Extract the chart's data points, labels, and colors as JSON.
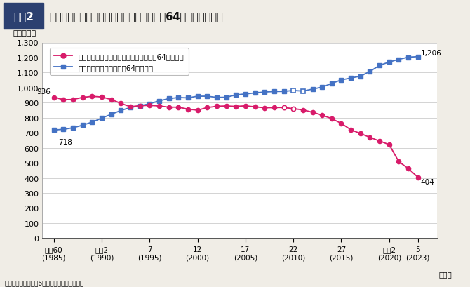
{
  "title_box": "図表2",
  "title_main": "共働き世帯と専業主婦世帯数の推移（妻が64歳以下の世帯）",
  "ylabel": "（万世帯）",
  "source": "出典＝内閣府「令和6年版男女共同参画白書」",
  "legend1": "男性雇用者と無業の妻から成る世帯（妻64歳以下）",
  "legend2": "雇用者の共働き世帯（妻64歳以下）",
  "bg_color": "#f0ede6",
  "plot_bg": "#ffffff",
  "years": [
    1985,
    1986,
    1987,
    1988,
    1989,
    1990,
    1991,
    1992,
    1993,
    1994,
    1995,
    1996,
    1997,
    1998,
    1999,
    2000,
    2001,
    2002,
    2003,
    2004,
    2005,
    2006,
    2007,
    2008,
    2009,
    2010,
    2011,
    2012,
    2013,
    2014,
    2015,
    2016,
    2017,
    2018,
    2019,
    2020,
    2021,
    2022,
    2023
  ],
  "pink_data": [
    936,
    920,
    921,
    935,
    942,
    938,
    921,
    895,
    873,
    880,
    882,
    878,
    870,
    870,
    857,
    850,
    867,
    876,
    878,
    875,
    879,
    872,
    866,
    867,
    868,
    860,
    852,
    836,
    817,
    794,
    762,
    720,
    695,
    669,
    645,
    621,
    508,
    462,
    404
  ],
  "pink_open_circles": [
    2009,
    2010
  ],
  "blue_data": [
    718,
    723,
    733,
    750,
    771,
    797,
    823,
    848,
    868,
    879,
    893,
    912,
    927,
    934,
    932,
    943,
    943,
    935,
    936,
    952,
    958,
    965,
    971,
    974,
    975,
    981,
    977,
    990,
    1003,
    1028,
    1051,
    1064,
    1076,
    1108,
    1148,
    1170,
    1188,
    1202,
    1206
  ],
  "blue_open_squares": [
    2010,
    2011
  ],
  "ylim": [
    0,
    1300
  ],
  "yticks": [
    0,
    100,
    200,
    300,
    400,
    500,
    600,
    700,
    800,
    900,
    1000,
    1100,
    1200,
    1300
  ],
  "xtick_labels": [
    "昭和60\n(1985)",
    "平成2\n(1990)",
    "7\n(1995)",
    "12\n(2000)",
    "17\n(2005)",
    "22\n(2010)",
    "27\n(2015)",
    "令和2\n(2020)",
    "5\n(2023)"
  ],
  "xtick_years": [
    1985,
    1990,
    1995,
    2000,
    2005,
    2010,
    2015,
    2020,
    2023
  ],
  "pink_color": "#d81b6a",
  "blue_color": "#4472c4",
  "title_box_color": "#2c4f8c",
  "ann_936": [
    1985,
    936
  ],
  "ann_718": [
    1985,
    718
  ],
  "ann_1206": [
    2023,
    1206
  ],
  "ann_404": [
    2023,
    404
  ],
  "year_label": "（年）"
}
